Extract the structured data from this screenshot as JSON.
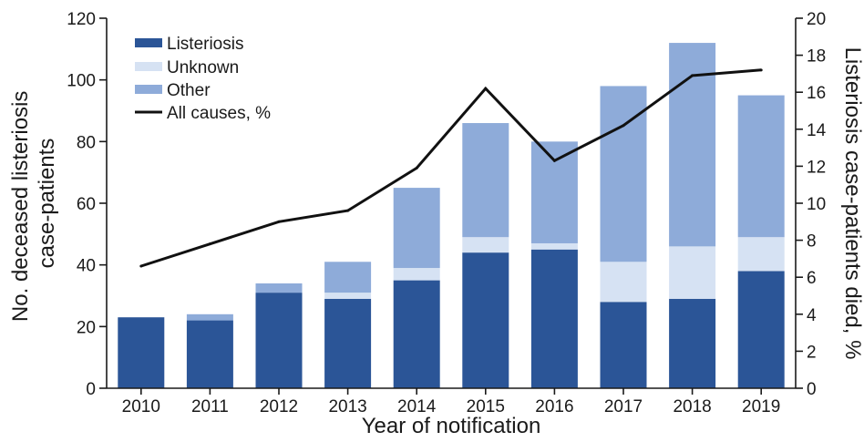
{
  "chart_data": {
    "type": "bar",
    "stacked": true,
    "categories": [
      "2010",
      "2011",
      "2012",
      "2013",
      "2014",
      "2015",
      "2016",
      "2017",
      "2018",
      "2019"
    ],
    "series": [
      {
        "name": "Listeriosis",
        "color": "#2b5597",
        "values": [
          23,
          22,
          31,
          29,
          35,
          44,
          45,
          28,
          29,
          38
        ]
      },
      {
        "name": "Unknown",
        "color": "#d6e2f3",
        "values": [
          0,
          0,
          0,
          2,
          4,
          5,
          2,
          13,
          17,
          11
        ]
      },
      {
        "name": "Other",
        "color": "#8eabd9",
        "values": [
          0,
          2,
          3,
          10,
          26,
          37,
          33,
          57,
          66,
          46
        ]
      }
    ],
    "line_series": {
      "name": "All causes, %",
      "color": "#111111",
      "axis": "right",
      "values": [
        6.6,
        7.8,
        9.0,
        9.6,
        11.9,
        16.2,
        12.3,
        14.2,
        16.9,
        17.2
      ]
    },
    "xlabel": "Year of notification",
    "ylabel_lines": [
      "No. deceased listeriosis",
      "case-patients"
    ],
    "y2label": "Listeriosis case-patients died, %",
    "ylim": [
      0,
      120
    ],
    "yticks": [
      "0",
      "20",
      "40",
      "60",
      "80",
      "100",
      "120"
    ],
    "y2lim": [
      0,
      20
    ],
    "y2ticks": [
      "0",
      "2",
      "4",
      "6",
      "8",
      "10",
      "12",
      "14",
      "16",
      "18",
      "20"
    ],
    "grid": false,
    "legend_position": "top-left"
  }
}
